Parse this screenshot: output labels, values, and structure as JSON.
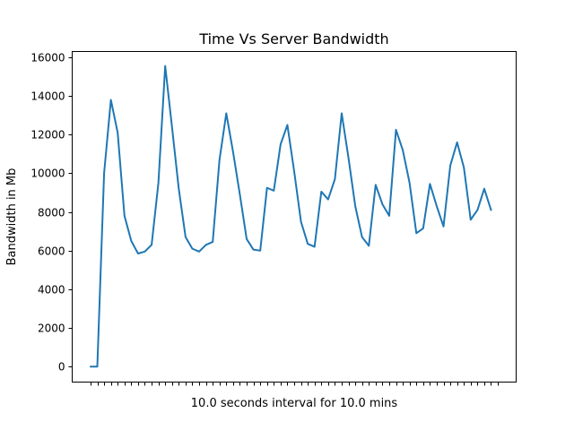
{
  "chart_data": {
    "type": "line",
    "title": "Time Vs Server Bandwidth",
    "xlabel": "10.0 seconds interval for 10.0 mins",
    "ylabel": "Bandwidth in Mb",
    "ylim": [
      -800,
      16300
    ],
    "yticks": [
      0,
      2000,
      4000,
      6000,
      8000,
      10000,
      12000,
      14000,
      16000
    ],
    "ytick_labels": [
      "0",
      "2000",
      "4000",
      "6000",
      "8000",
      "10000",
      "12000",
      "14000",
      "16000"
    ],
    "xtick_labels_visible": false,
    "grid": false,
    "legend": "none",
    "series": [
      {
        "color": "#1f77b4",
        "x": [
          0,
          1,
          2,
          3,
          4,
          5,
          6,
          7,
          8,
          9,
          10,
          11,
          12,
          13,
          14,
          15,
          16,
          17,
          18,
          19,
          20,
          21,
          22,
          23,
          24,
          25,
          26,
          27,
          28,
          29,
          30,
          31,
          32,
          33,
          34,
          35,
          36,
          37,
          38,
          39,
          40,
          41,
          42,
          43,
          44,
          45,
          46,
          47,
          48,
          49,
          50,
          51,
          52,
          53,
          54,
          55,
          56,
          57,
          58,
          59,
          60
        ],
        "values": [
          0,
          0,
          10000,
          13800,
          12100,
          7800,
          6500,
          5850,
          5950,
          6300,
          9500,
          15550,
          12400,
          9200,
          6700,
          6100,
          5950,
          6300,
          6450,
          10700,
          13100,
          11100,
          8900,
          6600,
          6050,
          6000,
          9250,
          9100,
          11500,
          12500,
          10100,
          7500,
          6350,
          6200,
          9050,
          8650,
          9700,
          13100,
          10800,
          8300,
          6700,
          6250,
          9400,
          8400,
          7800,
          12250,
          11200,
          9500,
          6900,
          7150,
          9450,
          8300,
          7250,
          10400,
          11600,
          10300,
          7600,
          8100,
          9200,
          8100,
          null
        ]
      }
    ]
  }
}
